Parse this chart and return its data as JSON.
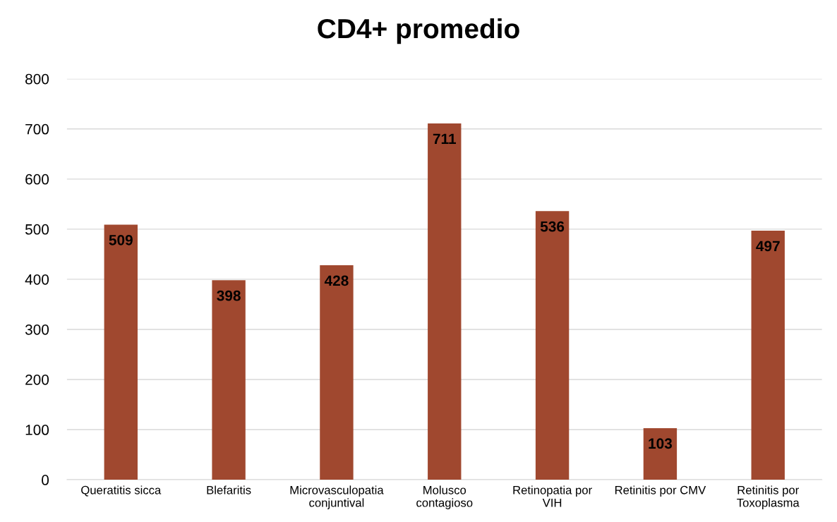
{
  "chart_data": {
    "type": "bar",
    "title": "CD4+ promedio",
    "categories": [
      "Queratitis sicca",
      "Blefaritis",
      "Microvasculopatia\nconjuntival",
      "Molusco\ncontagioso",
      "Retinopatia por\nVIH",
      "Retinitis por CMV",
      "Retinitis por\nToxoplasma"
    ],
    "values": [
      509,
      398,
      428,
      711,
      536,
      103,
      497
    ],
    "color": "#a0482f",
    "ylim": [
      0,
      800
    ],
    "yticks": [
      0,
      100,
      200,
      300,
      400,
      500,
      600,
      700,
      800
    ],
    "grid": "y",
    "data_labels": true,
    "legend": false
  }
}
